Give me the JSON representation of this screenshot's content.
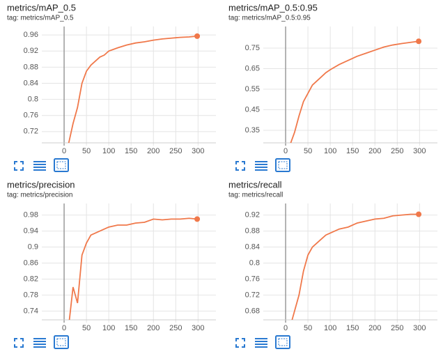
{
  "chart_data": [
    {
      "type": "line",
      "title": "metrics/mAP_0.5",
      "subtitle": "tag: metrics/mAP_0.5",
      "color": "#f0784a",
      "x": [
        10,
        20,
        30,
        40,
        50,
        60,
        70,
        80,
        90,
        100,
        120,
        140,
        160,
        180,
        200,
        220,
        240,
        260,
        280,
        298
      ],
      "values": [
        0.69,
        0.74,
        0.78,
        0.84,
        0.87,
        0.885,
        0.895,
        0.905,
        0.91,
        0.92,
        0.928,
        0.935,
        0.94,
        0.943,
        0.947,
        0.95,
        0.952,
        0.954,
        0.955,
        0.957
      ],
      "xlim": [
        -50,
        340
      ],
      "xticks": [
        0,
        50,
        100,
        150,
        200,
        250,
        300
      ],
      "ylim": [
        0.692,
        0.981
      ],
      "yticks": [
        0.72,
        0.76,
        0.8,
        0.84,
        0.88,
        0.92,
        0.96
      ],
      "grid": true
    },
    {
      "type": "line",
      "title": "metrics/mAP_0.5:0.95",
      "subtitle": "tag: metrics/mAP_0.5:0.95",
      "color": "#f0784a",
      "x": [
        10,
        20,
        30,
        40,
        50,
        60,
        70,
        80,
        90,
        100,
        120,
        140,
        160,
        180,
        200,
        220,
        240,
        260,
        280,
        298
      ],
      "values": [
        0.28,
        0.34,
        0.42,
        0.49,
        0.53,
        0.57,
        0.59,
        0.61,
        0.63,
        0.645,
        0.67,
        0.69,
        0.71,
        0.725,
        0.74,
        0.755,
        0.765,
        0.772,
        0.778,
        0.783
      ],
      "xlim": [
        -50,
        340
      ],
      "xticks": [
        0,
        50,
        100,
        150,
        200,
        250,
        300
      ],
      "ylim": [
        0.289,
        0.855
      ],
      "yticks": [
        0.35,
        0.45,
        0.55,
        0.65,
        0.75
      ],
      "grid": true
    },
    {
      "type": "line",
      "title": "metrics/precision",
      "subtitle": "tag: metrics/precision",
      "color": "#f0784a",
      "x": [
        10,
        20,
        30,
        40,
        50,
        60,
        70,
        80,
        90,
        100,
        120,
        140,
        160,
        180,
        200,
        220,
        240,
        260,
        280,
        298
      ],
      "values": [
        0.7,
        0.8,
        0.76,
        0.88,
        0.91,
        0.93,
        0.935,
        0.94,
        0.945,
        0.95,
        0.955,
        0.955,
        0.96,
        0.962,
        0.97,
        0.968,
        0.97,
        0.97,
        0.972,
        0.97
      ],
      "xlim": [
        -50,
        340
      ],
      "xticks": [
        0,
        50,
        100,
        150,
        200,
        250,
        300
      ],
      "ylim": [
        0.718,
        1.009
      ],
      "yticks": [
        0.74,
        0.78,
        0.82,
        0.86,
        0.9,
        0.94,
        0.98
      ],
      "grid": true
    },
    {
      "type": "line",
      "title": "metrics/recall",
      "subtitle": "tag: metrics/recall",
      "color": "#f0784a",
      "x": [
        10,
        20,
        30,
        40,
        50,
        60,
        70,
        80,
        90,
        100,
        120,
        140,
        160,
        180,
        200,
        220,
        240,
        260,
        280,
        298
      ],
      "values": [
        0.64,
        0.68,
        0.72,
        0.78,
        0.82,
        0.84,
        0.85,
        0.86,
        0.87,
        0.875,
        0.885,
        0.89,
        0.9,
        0.905,
        0.91,
        0.912,
        0.918,
        0.92,
        0.922,
        0.922
      ],
      "xlim": [
        -50,
        340
      ],
      "xticks": [
        0,
        50,
        100,
        150,
        200,
        250,
        300
      ],
      "ylim": [
        0.658,
        0.949
      ],
      "yticks": [
        0.68,
        0.72,
        0.76,
        0.8,
        0.84,
        0.88,
        0.92
      ],
      "grid": true
    }
  ]
}
